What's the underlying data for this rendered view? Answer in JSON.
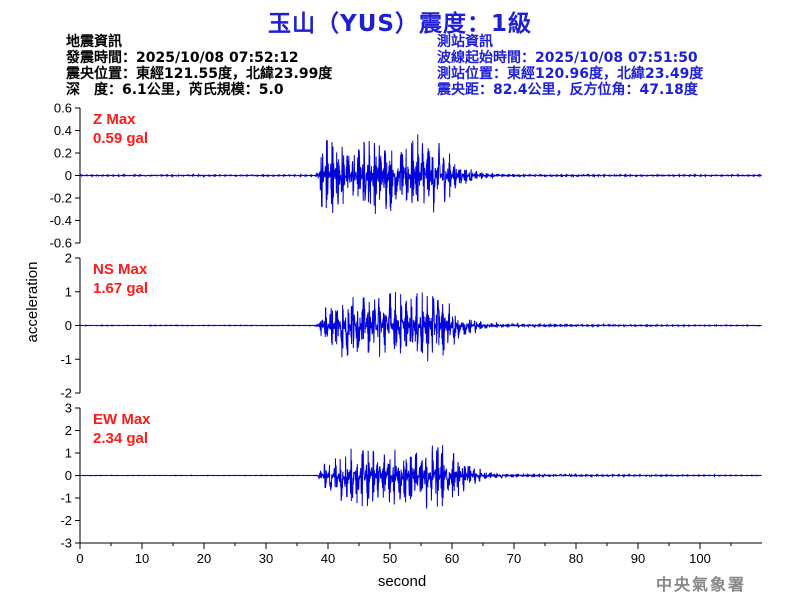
{
  "title": "玉山（YUS）震度：1級",
  "event_info": {
    "heading": "地震資訊",
    "origin_time": "發震時間：2025/10/08 07:52:12",
    "epicenter": "震央位置：東經121.55度，北緯23.99度",
    "depth_magnitude": "深　度：6.1公里，芮氏規模：5.0"
  },
  "station_info": {
    "heading": "測站資訊",
    "wave_start": "波線起始時間：2025/10/08 07:51:50",
    "station_location": "測站位置：東經120.96度，北緯23.49度",
    "distance": "震央距：82.4公里，反方位角：47.18度"
  },
  "footer": "中央氣象署",
  "colors": {
    "title": "#1f1fd6",
    "trace": "#0000dd",
    "annotation": "#ff1a1a",
    "station_text": "#1f1fd6"
  },
  "chart_data": {
    "type": "line",
    "xlabel": "second",
    "ylabel": "acceleration",
    "xlim": [
      0,
      110
    ],
    "xticks": [
      0,
      10,
      20,
      30,
      40,
      50,
      60,
      70,
      80,
      90,
      100
    ],
    "panels": [
      {
        "name": "Z",
        "max_label": "Z Max",
        "max_value": "0.59 gal",
        "ylim": [
          -0.6,
          0.6
        ],
        "yticks": [
          "0.6",
          "0.4",
          "0.2",
          "0",
          "-0.2",
          "-0.4",
          "-0.6"
        ],
        "ytick_values": [
          0.6,
          0.4,
          0.2,
          0,
          -0.2,
          -0.4,
          -0.6
        ],
        "envelope": {
          "noise": 0.006,
          "onset": 38,
          "peak_times": [
            40,
            48,
            55
          ],
          "peak_amp": 0.59,
          "tail": 0.02
        }
      },
      {
        "name": "NS",
        "max_label": "NS Max",
        "max_value": "1.67 gal",
        "ylim": [
          -2,
          2
        ],
        "yticks": [
          "2",
          "1",
          "0",
          "-1",
          "-2"
        ],
        "ytick_values": [
          2,
          1,
          0,
          -1,
          -2
        ],
        "envelope": {
          "noise": 0.01,
          "onset": 38,
          "peak_times": [
            44,
            50,
            56
          ],
          "peak_amp": 1.67,
          "tail": 0.08
        }
      },
      {
        "name": "EW",
        "max_label": "EW Max",
        "max_value": "2.34 gal",
        "ylim": [
          -3,
          3
        ],
        "yticks": [
          "3",
          "2",
          "1",
          "0",
          "-1",
          "-2",
          "-3"
        ],
        "ytick_values": [
          3,
          2,
          1,
          0,
          -1,
          -2,
          -3
        ],
        "envelope": {
          "noise": 0.01,
          "onset": 38,
          "peak_times": [
            45,
            52,
            57
          ],
          "peak_amp": 2.34,
          "tail": 0.12
        }
      }
    ]
  }
}
